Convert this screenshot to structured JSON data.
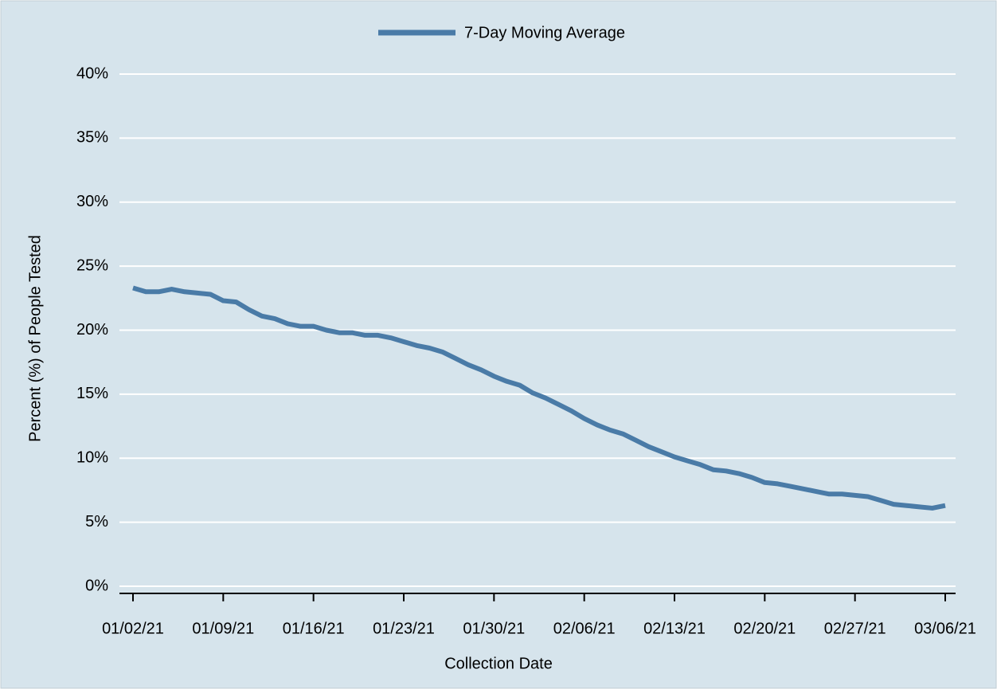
{
  "chart_data": {
    "type": "line",
    "legend_position": "top",
    "x_label": "Collection Date",
    "y_label": "Percent (%) of People Tested",
    "x": [
      "01/02/21",
      "01/03/21",
      "01/04/21",
      "01/05/21",
      "01/06/21",
      "01/07/21",
      "01/08/21",
      "01/09/21",
      "01/10/21",
      "01/11/21",
      "01/12/21",
      "01/13/21",
      "01/14/21",
      "01/15/21",
      "01/16/21",
      "01/17/21",
      "01/18/21",
      "01/19/21",
      "01/20/21",
      "01/21/21",
      "01/22/21",
      "01/23/21",
      "01/24/21",
      "01/25/21",
      "01/26/21",
      "01/27/21",
      "01/28/21",
      "01/29/21",
      "01/30/21",
      "01/31/21",
      "02/01/21",
      "02/02/21",
      "02/03/21",
      "02/04/21",
      "02/05/21",
      "02/06/21",
      "02/07/21",
      "02/08/21",
      "02/09/21",
      "02/10/21",
      "02/11/21",
      "02/12/21",
      "02/13/21",
      "02/14/21",
      "02/15/21",
      "02/16/21",
      "02/17/21",
      "02/18/21",
      "02/19/21",
      "02/20/21",
      "02/21/21",
      "02/22/21",
      "02/23/21",
      "02/24/21",
      "02/25/21",
      "02/26/21",
      "02/27/21",
      "02/28/21",
      "03/01/21",
      "03/02/21",
      "03/03/21",
      "03/04/21",
      "03/05/21",
      "03/06/21"
    ],
    "series": [
      {
        "name": "7-Day Moving Average",
        "color": "#4a7ba7",
        "values": [
          23.3,
          23.0,
          23.0,
          23.2,
          23.0,
          22.9,
          22.8,
          22.3,
          22.2,
          21.6,
          21.1,
          20.9,
          20.5,
          20.3,
          20.3,
          20.0,
          19.8,
          19.8,
          19.6,
          19.6,
          19.4,
          19.1,
          18.8,
          18.6,
          18.3,
          17.8,
          17.3,
          16.9,
          16.4,
          16.0,
          15.7,
          15.1,
          14.7,
          14.2,
          13.7,
          13.1,
          12.6,
          12.2,
          11.9,
          11.4,
          10.9,
          10.5,
          10.1,
          9.8,
          9.5,
          9.1,
          9.0,
          8.8,
          8.5,
          8.1,
          8.0,
          7.8,
          7.6,
          7.4,
          7.2,
          7.2,
          7.1,
          7.0,
          6.7,
          6.4,
          6.3,
          6.2,
          6.1,
          6.3
        ]
      }
    ],
    "xticks": [
      "01/02/21",
      "01/09/21",
      "01/16/21",
      "01/23/21",
      "01/30/21",
      "02/06/21",
      "02/13/21",
      "02/20/21",
      "02/27/21",
      "03/06/21"
    ],
    "ylim": [
      0,
      40
    ],
    "yticks": [
      {
        "value": 0,
        "label": "0%"
      },
      {
        "value": 5,
        "label": "5%"
      },
      {
        "value": 10,
        "label": "10%"
      },
      {
        "value": 15,
        "label": "15%"
      },
      {
        "value": 20,
        "label": "20%"
      },
      {
        "value": 25,
        "label": "25%"
      },
      {
        "value": 30,
        "label": "30%"
      },
      {
        "value": 35,
        "label": "35%"
      },
      {
        "value": 40,
        "label": "40%"
      }
    ],
    "grid": true
  }
}
